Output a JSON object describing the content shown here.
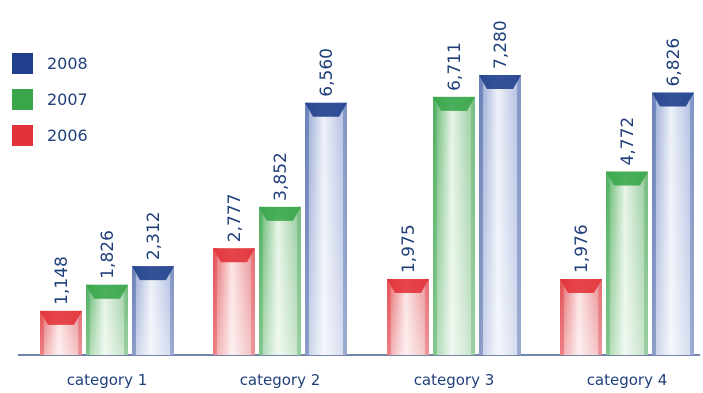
{
  "chart_data": {
    "type": "bar",
    "categories": [
      "category 1",
      "category 2",
      "category 3",
      "category 4"
    ],
    "series": [
      {
        "name": "2006",
        "values": [
          1148,
          2777,
          1975,
          1976
        ]
      },
      {
        "name": "2007",
        "values": [
          1826,
          3852,
          6711,
          4772
        ]
      },
      {
        "name": "2008",
        "values": [
          2312,
          6560,
          7280,
          6826
        ]
      }
    ],
    "value_labels": [
      [
        "1,148",
        "2,777",
        "1,975",
        "1,976"
      ],
      [
        "1,826",
        "3,852",
        "6,711",
        "4,772"
      ],
      [
        "2,312",
        "6,560",
        "7,280",
        "6,826"
      ]
    ],
    "legend": [
      "2008",
      "2007",
      "2006"
    ],
    "legend_placement": "top-left",
    "grid": false,
    "ylim": [
      0,
      7280
    ],
    "colors": {
      "2006": "#e2333a",
      "2007": "#39a64a",
      "2008": "#1f3f8c",
      "text": "#1f3f7a",
      "axis": "#1f3f7a"
    }
  }
}
